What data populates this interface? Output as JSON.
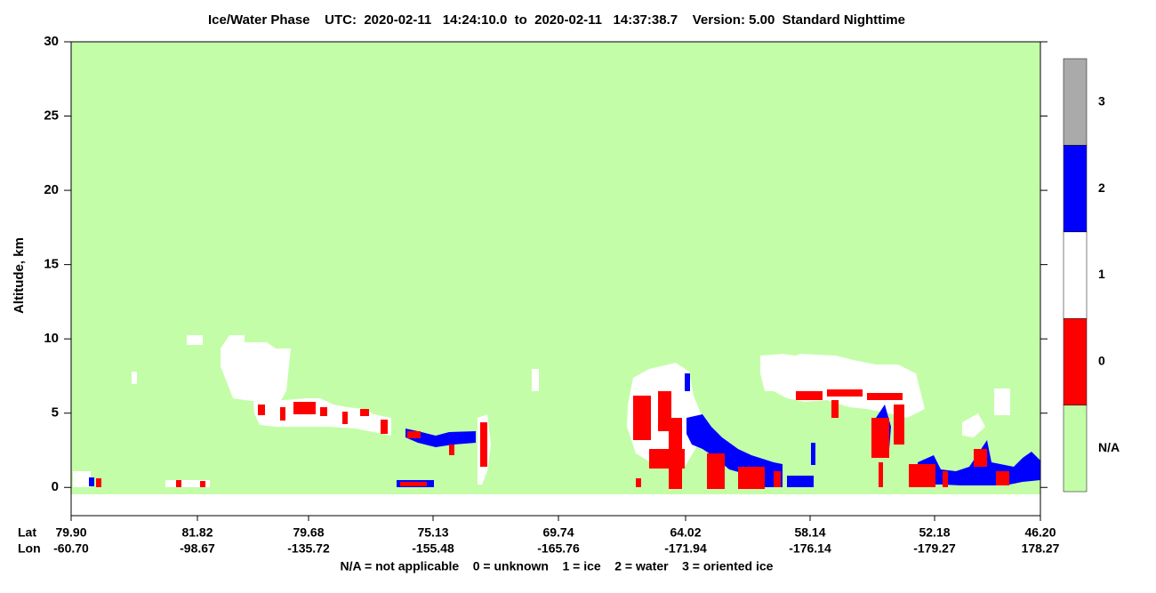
{
  "chart_data": {
    "type": "curtain",
    "title": "Ice/Water Phase    UTC:  2020-02-11   14:24:10.0  to  2020-02-11   14:37:38.7    Version: 5.00  Standard Nighttime",
    "y_label": "Altitude, km",
    "ylim": [
      -1.9,
      30
    ],
    "yticks": [
      0,
      5,
      10,
      15,
      20,
      25,
      30
    ],
    "lat_title": "Lat",
    "lon_title": "Lon",
    "lat_labels": [
      "79.90",
      "81.82",
      "79.68",
      "75.13",
      "69.74",
      "64.02",
      "58.14",
      "52.18",
      "46.20"
    ],
    "lon_labels": [
      "-60.70",
      "-98.67",
      "-135.72",
      "-155.48",
      "-165.76",
      "-171.94",
      "-176.14",
      "-179.27",
      "178.27"
    ],
    "legend_text": "N/A = not applicable    0 = unknown    1 = ice    2 = water    3 = oriented ice",
    "colorbar": {
      "categories": [
        "N/A",
        "0",
        "1",
        "2",
        "3"
      ],
      "colors": [
        "#c4fda8",
        "#ff0000",
        "#ffffff",
        "#0000ff",
        "#aaaaaa"
      ]
    }
  }
}
